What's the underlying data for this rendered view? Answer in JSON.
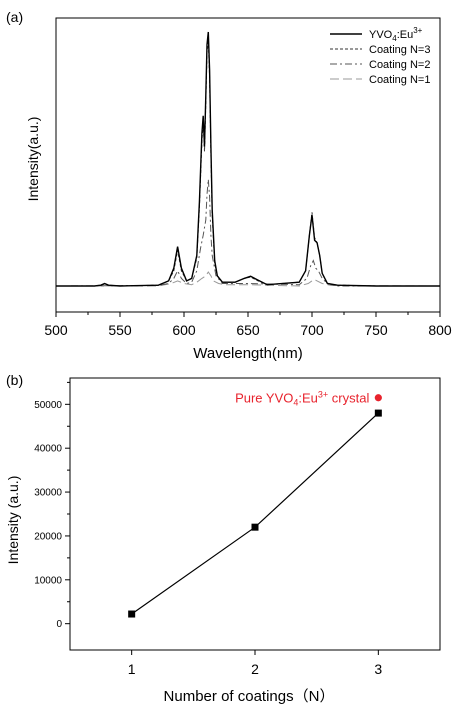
{
  "chart_data": [
    {
      "type": "line",
      "panel_label": "(a)",
      "xlabel": "Wavelength(nm)",
      "ylabel": "Intensity(a.u.)",
      "xlim": [
        500,
        800
      ],
      "xticks": [
        500,
        550,
        600,
        650,
        700,
        750,
        800
      ],
      "ylim": [
        0,
        1.1
      ],
      "y_ticks_shown": false,
      "legend_position": "top-right",
      "legend": [
        {
          "name": "YVO4:Eu3+",
          "base": "YVO",
          "sub": "4",
          "mid": ":Eu",
          "sup": "3+",
          "style": "solid",
          "color": "#000000"
        },
        {
          "name": "Coating N=3",
          "style": "short-dash",
          "color": "#333333"
        },
        {
          "name": "Coating N=2",
          "style": "dash-dot",
          "color": "#555555"
        },
        {
          "name": "Coating N=1",
          "style": "long-dash",
          "color": "#999999"
        }
      ],
      "series": [
        {
          "name": "YVO4:Eu3+",
          "x": [
            500,
            530,
            535,
            538,
            541,
            550,
            580,
            588,
            592,
            595,
            598,
            602,
            606,
            610,
            612,
            614,
            615,
            616,
            617,
            618,
            619,
            620,
            621,
            622,
            624,
            626,
            630,
            640,
            647,
            652,
            657,
            665,
            690,
            695,
            698,
            700,
            702,
            704,
            706,
            708,
            712,
            720,
            750,
            800
          ],
          "y": [
            0,
            0,
            0.003,
            0.01,
            0.003,
            0,
            0.003,
            0.02,
            0.07,
            0.155,
            0.07,
            0.02,
            0.03,
            0.12,
            0.33,
            0.6,
            0.67,
            0.55,
            0.75,
            0.95,
            1.0,
            0.85,
            0.55,
            0.3,
            0.1,
            0.04,
            0.015,
            0.015,
            0.03,
            0.038,
            0.025,
            0.005,
            0.015,
            0.06,
            0.2,
            0.28,
            0.18,
            0.17,
            0.12,
            0.05,
            0.01,
            0.003,
            0,
            0
          ]
        },
        {
          "name": "Coating N=3",
          "x": [
            500,
            530,
            535,
            538,
            541,
            550,
            580,
            588,
            592,
            595,
            598,
            602,
            606,
            610,
            612,
            614,
            615,
            616,
            617,
            618,
            619,
            620,
            621,
            622,
            624,
            626,
            630,
            640,
            647,
            652,
            657,
            665,
            690,
            695,
            698,
            700,
            702,
            704,
            706,
            708,
            712,
            720,
            750,
            800
          ],
          "y": [
            0,
            0,
            0.003,
            0.008,
            0.003,
            0,
            0.003,
            0.02,
            0.06,
            0.14,
            0.06,
            0.02,
            0.03,
            0.11,
            0.31,
            0.57,
            0.65,
            0.53,
            0.72,
            0.92,
            0.97,
            0.82,
            0.52,
            0.28,
            0.09,
            0.04,
            0.015,
            0.015,
            0.03,
            0.035,
            0.022,
            0.005,
            0.015,
            0.06,
            0.2,
            0.29,
            0.19,
            0.17,
            0.12,
            0.05,
            0.01,
            0.003,
            0,
            0
          ]
        },
        {
          "name": "Coating N=2",
          "x": [
            500,
            580,
            588,
            592,
            595,
            598,
            602,
            606,
            610,
            613,
            615,
            617,
            618,
            619,
            620,
            621,
            622,
            625,
            630,
            650,
            690,
            696,
            699,
            701,
            703,
            705,
            708,
            712,
            720,
            800
          ],
          "y": [
            0,
            0.002,
            0.01,
            0.03,
            0.06,
            0.03,
            0.01,
            0.015,
            0.06,
            0.15,
            0.2,
            0.26,
            0.36,
            0.42,
            0.35,
            0.2,
            0.12,
            0.04,
            0.01,
            0.01,
            0.005,
            0.03,
            0.08,
            0.1,
            0.07,
            0.06,
            0.03,
            0.01,
            0,
            0
          ]
        },
        {
          "name": "Coating N=1",
          "x": [
            500,
            580,
            590,
            595,
            600,
            606,
            610,
            614,
            617,
            619,
            621,
            623,
            627,
            632,
            650,
            690,
            697,
            700,
            702,
            704,
            708,
            715,
            800
          ],
          "y": [
            0,
            0,
            0.01,
            0.02,
            0.01,
            0.005,
            0.015,
            0.03,
            0.04,
            0.055,
            0.04,
            0.02,
            0.01,
            0.005,
            0.005,
            0,
            0.01,
            0.02,
            0.025,
            0.02,
            0.01,
            0.002,
            0
          ]
        }
      ]
    },
    {
      "type": "line",
      "panel_label": "(b)",
      "xlabel": "Number of coatings（N）",
      "ylabel": "Intensity (a.u.)",
      "categories": [
        "1",
        "2",
        "3"
      ],
      "xlim": [
        0.5,
        3.5
      ],
      "ylim": [
        -6000,
        56000
      ],
      "yticks": [
        0,
        10000,
        20000,
        30000,
        40000,
        50000
      ],
      "series": [
        {
          "name": "",
          "x": [
            1,
            2,
            3
          ],
          "values": [
            2200,
            22000,
            48000
          ],
          "marker": "square",
          "color": "#000000"
        }
      ],
      "reference_point": {
        "label": "Pure YVO4:Eu3+ crystal",
        "base": "Pure YVO",
        "sub": "4",
        "mid": ":Eu",
        "sup": "3+",
        "tail": " crystal",
        "x": 3,
        "value": 51500,
        "color": "#e8232d"
      }
    }
  ]
}
